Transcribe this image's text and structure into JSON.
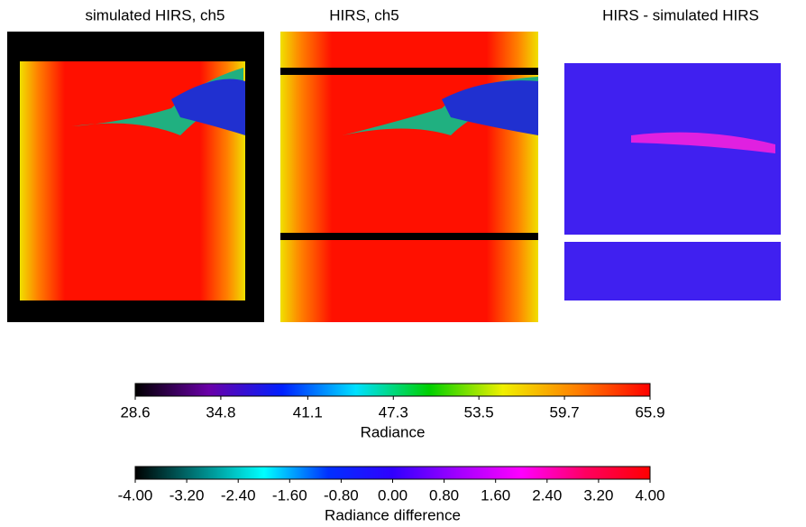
{
  "chart_data": {
    "type": "heatmap",
    "panels": [
      {
        "title": "simulated HIRS, ch5"
      },
      {
        "title": "HIRS, ch5"
      },
      {
        "title": "HIRS - simulated HIRS"
      }
    ],
    "colorbars": [
      {
        "label": "Radiance",
        "lim": [
          28.6,
          65.9
        ],
        "ticks": [
          28.6,
          34.8,
          41.1,
          47.3,
          53.5,
          59.7,
          65.9
        ],
        "colors": [
          "#000000",
          "#6a00a8",
          "#0020ff",
          "#00e0ff",
          "#00d000",
          "#f0f000",
          "#ff8000",
          "#ff0000"
        ]
      },
      {
        "label": "Radiance difference",
        "lim": [
          -4,
          4
        ],
        "ticks": [
          {
            "value": -4,
            "label": "-4.00"
          },
          {
            "value": -3.2,
            "label": "-3.20"
          },
          {
            "value": -2.4,
            "label": "-2.40"
          },
          {
            "value": -1.6,
            "label": "-1.60"
          },
          {
            "value": -0.8,
            "label": "-0.80"
          },
          {
            "value": 0,
            "label": "0.00"
          },
          {
            "value": 0.8,
            "label": "0.80"
          },
          {
            "value": 1.6,
            "label": "1.60"
          },
          {
            "value": 2.4,
            "label": "2.40"
          },
          {
            "value": 3.2,
            "label": "3.20"
          },
          {
            "value": 4,
            "label": "4.00"
          }
        ],
        "colors": [
          "#000000",
          "#008080",
          "#00ffff",
          "#0030ff",
          "#3000ff",
          "#a000ff",
          "#ff00ff",
          "#ff0060",
          "#ff0000"
        ]
      }
    ]
  }
}
